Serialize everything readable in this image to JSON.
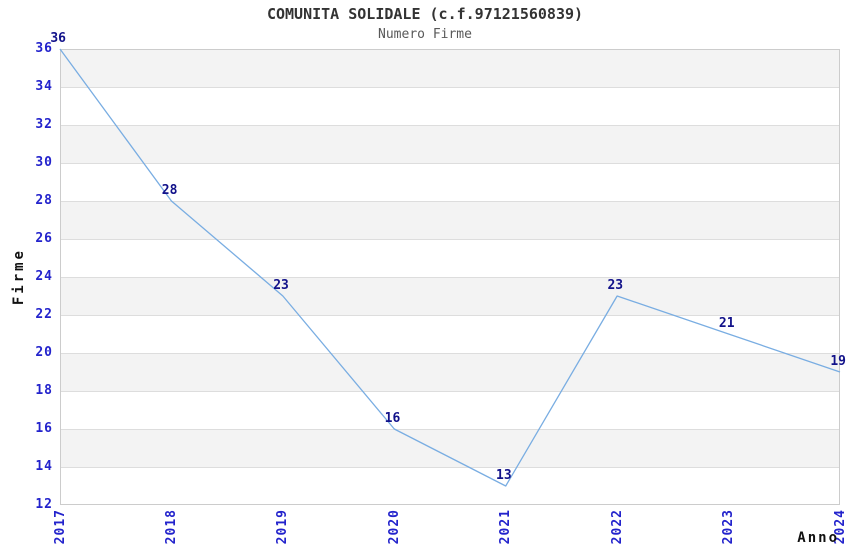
{
  "title": "COMUNITA SOLIDALE (c.f.97121560839)",
  "subtitle": "Numero Firme",
  "chart_data": {
    "type": "line",
    "x": [
      "2017",
      "2018",
      "2019",
      "2020",
      "2021",
      "2022",
      "2023",
      "2024"
    ],
    "values": [
      36,
      28,
      23,
      16,
      13,
      23,
      21,
      19
    ],
    "title": "COMUNITA SOLIDALE (c.f.97121560839)",
    "subtitle": "Numero Firme",
    "xlabel": "Anno",
    "ylabel": "Firme",
    "ylim": [
      12,
      36
    ],
    "ytick_step": 2,
    "grid": "horizontal alternating bands",
    "legend": "none",
    "data_labels_shown": true,
    "colors": {
      "line": "#79ade2",
      "tick_label": "#2323cc",
      "data_label": "#12128a",
      "band": "#f3f3f3",
      "grid_line": "#dddddd",
      "plot_border": "#cccccc",
      "title": "#333333",
      "subtitle": "#595959",
      "axis_title": "#111111",
      "background": "#ffffff"
    }
  }
}
